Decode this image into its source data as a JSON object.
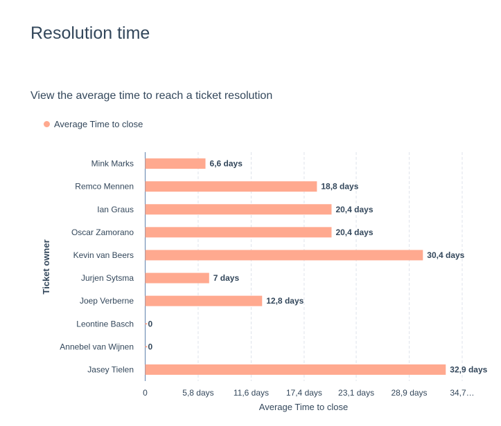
{
  "page": {
    "title": "Resolution time",
    "subtitle": "View the average time to reach a ticket resolution"
  },
  "chart_data": {
    "type": "bar",
    "orientation": "horizontal",
    "categories": [
      "Mink Marks",
      "Remco Mennen",
      "Ian Graus",
      "Oscar Zamorano",
      "Kevin van Beers",
      "Jurjen Sytsma",
      "Joep Verberne",
      "Leontine Basch",
      "Annebel van Wijnen",
      "Jasey Tielen"
    ],
    "series": [
      {
        "name": "Average Time to close",
        "color": "#ffa98f",
        "values": [
          6.6,
          18.8,
          20.4,
          20.4,
          30.4,
          7,
          12.8,
          0,
          0,
          32.9
        ],
        "data_labels": [
          "6,6 days",
          "18,8 days",
          "20,4 days",
          "20,4 days",
          "30,4 days",
          "7 days",
          "12,8 days",
          "0",
          "0",
          "32,9 days"
        ]
      }
    ],
    "xlabel": "Average Time to close",
    "ylabel": "Ticket owner",
    "xlim": [
      0,
      34.7
    ],
    "x_ticks": [
      0,
      5.8,
      11.6,
      17.4,
      23.1,
      28.9,
      34.7
    ],
    "x_tick_labels": [
      "0",
      "5,8 days",
      "11,6 days",
      "17,4 days",
      "23,1 days",
      "28,9 days",
      "34,7…"
    ],
    "grid": true,
    "legend_position": "top-left"
  }
}
